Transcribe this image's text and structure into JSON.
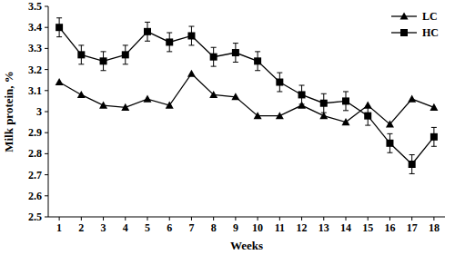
{
  "chart_data": {
    "type": "line",
    "x_label": "Weeks",
    "y_label": "Milk protein, %",
    "x": [
      1,
      2,
      3,
      4,
      5,
      6,
      7,
      8,
      9,
      10,
      11,
      12,
      13,
      14,
      15,
      16,
      17,
      18
    ],
    "xlim": [
      0.5,
      18.5
    ],
    "xticks": [
      1,
      2,
      3,
      4,
      5,
      6,
      7,
      8,
      9,
      10,
      11,
      12,
      13,
      14,
      15,
      16,
      17,
      18
    ],
    "ylim": [
      2.5,
      3.5
    ],
    "yticks": [
      2.5,
      2.6,
      2.7,
      2.8,
      2.9,
      3,
      3.1,
      3.2,
      3.3,
      3.4,
      3.5
    ],
    "grid": false,
    "legend": "upper right",
    "series": [
      {
        "name": "LC",
        "color": "#000000",
        "marker": "triangle",
        "line_style": "solid",
        "values": [
          3.14,
          3.08,
          3.03,
          3.02,
          3.06,
          3.03,
          3.18,
          3.08,
          3.07,
          2.98,
          2.98,
          3.03,
          2.98,
          2.95,
          3.03,
          2.94,
          3.06,
          3.02
        ]
      },
      {
        "name": "HC",
        "color": "#000000",
        "marker": "square",
        "line_style": "solid",
        "values": [
          3.4,
          3.27,
          3.24,
          3.27,
          3.38,
          3.33,
          3.36,
          3.26,
          3.28,
          3.24,
          3.14,
          3.08,
          3.04,
          3.05,
          2.98,
          2.85,
          2.75,
          2.88
        ],
        "errors": [
          0.045,
          0.045,
          0.045,
          0.045,
          0.045,
          0.045,
          0.045,
          0.045,
          0.045,
          0.045,
          0.045,
          0.045,
          0.045,
          0.045,
          0.045,
          0.045,
          0.045,
          0.045
        ]
      }
    ]
  }
}
